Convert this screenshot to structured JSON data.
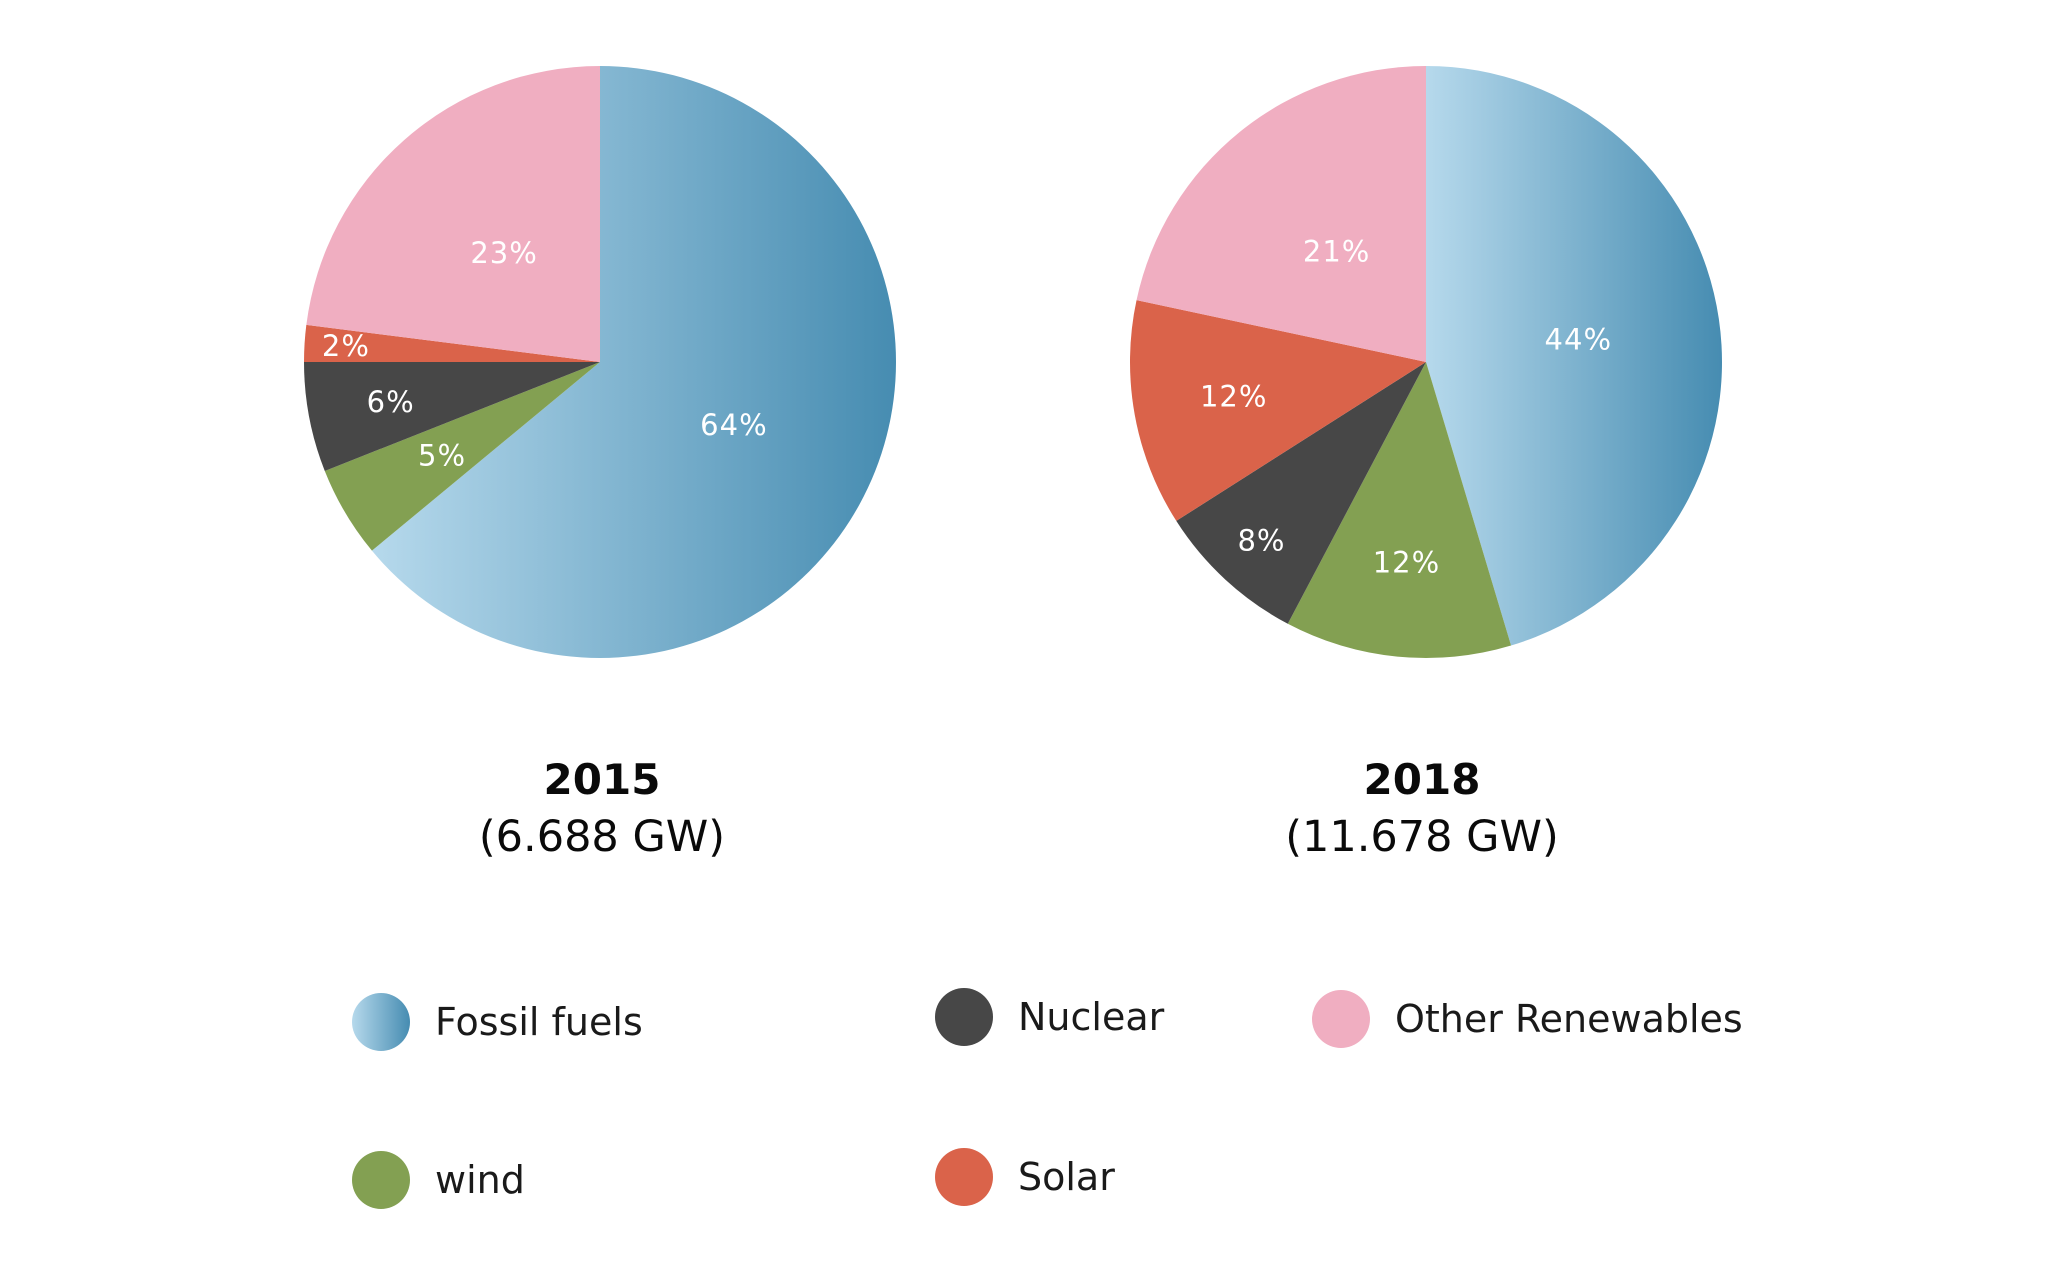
{
  "colors": {
    "fossil_light": "#b6d9ec",
    "fossil_dark": "#468cb1",
    "nuclear": "#474747",
    "other_renewables": "#f0aec1",
    "wind": "#83a052",
    "solar": "#da634a",
    "label_text": "#ffffff"
  },
  "chart_data": [
    {
      "type": "pie",
      "title": "2015",
      "subtitle": "(6.688 GW)",
      "categories": [
        "Fossil fuels",
        "wind",
        "Nuclear",
        "Solar",
        "Other Renewables"
      ],
      "values": [
        64,
        5,
        6,
        2,
        23
      ],
      "labels": [
        "64%",
        "5%",
        "6%",
        "2%",
        "23%"
      ]
    },
    {
      "type": "pie",
      "title": "2018",
      "subtitle": "(11.678 GW)",
      "categories": [
        "Fossil fuels",
        "wind",
        "Nuclear",
        "Solar",
        "Other Renewables"
      ],
      "values": [
        44,
        12,
        8,
        12,
        21
      ],
      "labels": [
        "44%",
        "12%",
        "8%",
        "12%",
        "21%"
      ]
    }
  ],
  "legend": [
    {
      "label": "Fossil fuels",
      "icon": "gradient-circle-icon"
    },
    {
      "label": "Nuclear",
      "icon": "circle-icon"
    },
    {
      "label": "Other Renewables",
      "icon": "circle-icon"
    },
    {
      "label": "wind",
      "icon": "circle-icon"
    },
    {
      "label": "Solar",
      "icon": "circle-icon"
    }
  ]
}
